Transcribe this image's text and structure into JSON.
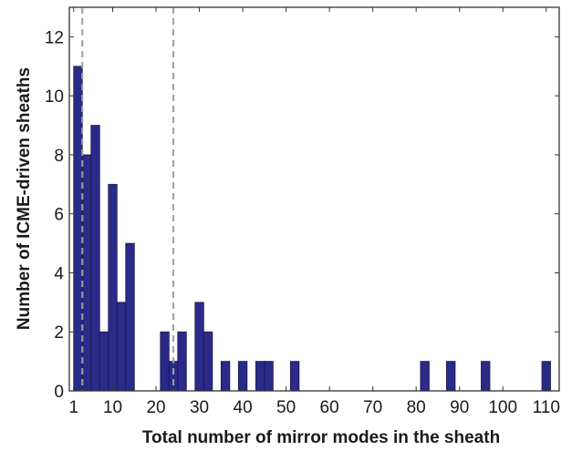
{
  "chart_data": {
    "type": "bar",
    "title": "",
    "xlabel": "Total number of mirror modes in the sheath",
    "ylabel": "Number of ICME-driven sheaths",
    "xlim": [
      0,
      113
    ],
    "ylim": [
      0,
      13
    ],
    "xticks": [
      1,
      10,
      20,
      30,
      40,
      50,
      60,
      70,
      80,
      90,
      100,
      110
    ],
    "yticks": [
      0,
      2,
      4,
      6,
      8,
      10,
      12
    ],
    "bin_width": 2,
    "bins": [
      {
        "start": 1,
        "count": 11
      },
      {
        "start": 3,
        "count": 8
      },
      {
        "start": 5,
        "count": 9
      },
      {
        "start": 7,
        "count": 2
      },
      {
        "start": 9,
        "count": 7
      },
      {
        "start": 11,
        "count": 3
      },
      {
        "start": 13,
        "count": 5
      },
      {
        "start": 21,
        "count": 2
      },
      {
        "start": 23,
        "count": 1
      },
      {
        "start": 25,
        "count": 2
      },
      {
        "start": 29,
        "count": 3
      },
      {
        "start": 31,
        "count": 2
      },
      {
        "start": 35,
        "count": 1
      },
      {
        "start": 39,
        "count": 1
      },
      {
        "start": 43,
        "count": 1
      },
      {
        "start": 45,
        "count": 1
      },
      {
        "start": 51,
        "count": 1
      },
      {
        "start": 81,
        "count": 1
      },
      {
        "start": 87,
        "count": 1
      },
      {
        "start": 95,
        "count": 1
      },
      {
        "start": 109,
        "count": 1
      }
    ],
    "reference_lines": [
      {
        "x": 3,
        "style": "dashed"
      },
      {
        "x": 24,
        "style": "dashed"
      }
    ],
    "bar_color": "#2a2a88",
    "bar_edge_color": "#181850",
    "reference_line_color": "#a0a0a0",
    "grid": false,
    "box": true
  }
}
